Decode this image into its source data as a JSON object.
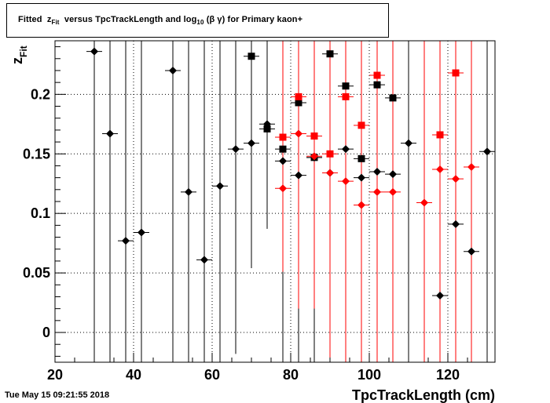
{
  "title": {
    "prefix": "Fitted",
    "z": "z",
    "z_sub": "Fit",
    "mid": "versus TpcTrackLength and log",
    "log_sub": "10",
    "tail": "(β γ) for Primary kaon+"
  },
  "timestamp": "Tue May 15 09:21:55 2018",
  "chart_data": {
    "type": "scatter",
    "title": "Fitted z_Fit versus TpcTrackLength and log10 (β γ) for Primary kaon+",
    "xlabel": "TpcTrackLength (cm)",
    "ylabel": "z_Fit",
    "ylabel_main": "z",
    "ylabel_sub": "Fit",
    "xlim": [
      20,
      132
    ],
    "ylim": [
      -0.025,
      0.245
    ],
    "xticks": [
      20,
      40,
      60,
      80,
      100,
      120
    ],
    "xtick_labels": [
      "20",
      "40",
      "60",
      "80",
      "100",
      "120"
    ],
    "yticks": [
      0,
      0.05,
      0.1,
      0.15,
      0.2
    ],
    "ytick_labels": [
      "0",
      "0.05",
      "0.1",
      "0.15",
      "0.2"
    ],
    "grid": true,
    "colors": {
      "black": "#000000",
      "red": "#ff0000"
    },
    "series": [
      {
        "marker": "diamond",
        "color": "#000000",
        "points": [
          {
            "x": 30,
            "y": 0.236,
            "ylo": -0.03,
            "yhi": 0.245
          },
          {
            "x": 34,
            "y": 0.167,
            "ylo": -0.03,
            "yhi": 0.245
          },
          {
            "x": 38,
            "y": 0.077,
            "ylo": -0.03,
            "yhi": 0.245
          },
          {
            "x": 42,
            "y": 0.084,
            "ylo": -0.03,
            "yhi": 0.245
          },
          {
            "x": 50,
            "y": 0.22,
            "ylo": -0.03,
            "yhi": 0.245
          },
          {
            "x": 54,
            "y": 0.118,
            "ylo": -0.03,
            "yhi": 0.245
          },
          {
            "x": 58,
            "y": 0.061,
            "ylo": -0.03,
            "yhi": 0.245
          },
          {
            "x": 62,
            "y": 0.123,
            "ylo": -0.03,
            "yhi": 0.245
          },
          {
            "x": 66,
            "y": 0.154,
            "ylo": -0.018,
            "yhi": 0.245
          },
          {
            "x": 70,
            "y": 0.159,
            "ylo": 0.054,
            "yhi": 0.245
          },
          {
            "x": 74,
            "y": 0.175,
            "ylo": 0.087,
            "yhi": 0.245
          },
          {
            "x": 78,
            "y": 0.144,
            "ylo": -0.03,
            "yhi": 0.245
          },
          {
            "x": 82,
            "y": 0.132,
            "ylo": -0.03,
            "yhi": 0.245
          },
          {
            "x": 86,
            "y": 0.147,
            "ylo": -0.03,
            "yhi": 0.245
          },
          {
            "x": 90,
            "y": 0.134,
            "ylo": -0.03,
            "yhi": 0.245
          },
          {
            "x": 94,
            "y": 0.154,
            "ylo": -0.03,
            "yhi": 0.245
          },
          {
            "x": 98,
            "y": 0.13,
            "ylo": -0.03,
            "yhi": 0.245
          },
          {
            "x": 102,
            "y": 0.135,
            "ylo": -0.03,
            "yhi": 0.245
          },
          {
            "x": 106,
            "y": 0.133,
            "ylo": -0.03,
            "yhi": 0.245
          },
          {
            "x": 110,
            "y": 0.159,
            "ylo": -0.03,
            "yhi": 0.245
          },
          {
            "x": 118,
            "y": 0.031,
            "ylo": -0.03,
            "yhi": 0.245
          },
          {
            "x": 122,
            "y": 0.091,
            "ylo": -0.03,
            "yhi": 0.245
          },
          {
            "x": 126,
            "y": 0.068,
            "ylo": -0.03,
            "yhi": 0.245
          },
          {
            "x": 130,
            "y": 0.152,
            "ylo": -0.03,
            "yhi": 0.245
          }
        ]
      },
      {
        "marker": "square",
        "color": "#000000",
        "points": [
          {
            "x": 70,
            "y": 0.232,
            "ylo": 0.232,
            "yhi": 0.232
          },
          {
            "x": 74,
            "y": 0.171,
            "ylo": 0.171,
            "yhi": 0.171
          },
          {
            "x": 78,
            "y": 0.154,
            "ylo": 0.154,
            "yhi": 0.154
          },
          {
            "x": 82,
            "y": 0.193,
            "ylo": 0.193,
            "yhi": 0.193
          },
          {
            "x": 86,
            "y": 0.147,
            "ylo": 0.147,
            "yhi": 0.147
          },
          {
            "x": 90,
            "y": 0.234,
            "ylo": 0.234,
            "yhi": 0.234
          },
          {
            "x": 94,
            "y": 0.207,
            "ylo": 0.207,
            "yhi": 0.207
          },
          {
            "x": 98,
            "y": 0.146,
            "ylo": 0.146,
            "yhi": 0.146
          },
          {
            "x": 102,
            "y": 0.208,
            "ylo": 0.208,
            "yhi": 0.208
          },
          {
            "x": 106,
            "y": 0.197,
            "ylo": 0.197,
            "yhi": 0.197
          }
        ]
      },
      {
        "marker": "diamond",
        "color": "#ff0000",
        "points": [
          {
            "x": 78,
            "y": 0.121,
            "ylo": 0.051,
            "yhi": 0.245
          },
          {
            "x": 82,
            "y": 0.167,
            "ylo": 0.02,
            "yhi": 0.245
          },
          {
            "x": 86,
            "y": 0.148,
            "ylo": 0.02,
            "yhi": 0.245
          },
          {
            "x": 90,
            "y": 0.134,
            "ylo": -0.03,
            "yhi": 0.245
          },
          {
            "x": 94,
            "y": 0.127,
            "ylo": -0.03,
            "yhi": 0.245
          },
          {
            "x": 98,
            "y": 0.107,
            "ylo": -0.03,
            "yhi": 0.245
          },
          {
            "x": 102,
            "y": 0.118,
            "ylo": -0.03,
            "yhi": 0.245
          },
          {
            "x": 106,
            "y": 0.118,
            "ylo": -0.03,
            "yhi": 0.245
          },
          {
            "x": 114,
            "y": 0.109,
            "ylo": -0.03,
            "yhi": 0.245
          },
          {
            "x": 118,
            "y": 0.137,
            "ylo": -0.03,
            "yhi": 0.245
          },
          {
            "x": 122,
            "y": 0.129,
            "ylo": -0.03,
            "yhi": 0.245
          },
          {
            "x": 126,
            "y": 0.139,
            "ylo": -0.03,
            "yhi": 0.245
          }
        ]
      },
      {
        "marker": "square",
        "color": "#ff0000",
        "points": [
          {
            "x": 78,
            "y": 0.164,
            "ylo": 0.164,
            "yhi": 0.164
          },
          {
            "x": 82,
            "y": 0.198,
            "ylo": 0.198,
            "yhi": 0.198
          },
          {
            "x": 86,
            "y": 0.165,
            "ylo": 0.165,
            "yhi": 0.165
          },
          {
            "x": 90,
            "y": 0.15,
            "ylo": 0.15,
            "yhi": 0.15
          },
          {
            "x": 94,
            "y": 0.198,
            "ylo": 0.198,
            "yhi": 0.198
          },
          {
            "x": 98,
            "y": 0.174,
            "ylo": 0.174,
            "yhi": 0.174
          },
          {
            "x": 102,
            "y": 0.216,
            "ylo": 0.216,
            "yhi": 0.216
          },
          {
            "x": 118,
            "y": 0.166,
            "ylo": 0.166,
            "yhi": 0.166
          },
          {
            "x": 122,
            "y": 0.218,
            "ylo": 0.218,
            "yhi": 0.218
          }
        ]
      }
    ]
  }
}
